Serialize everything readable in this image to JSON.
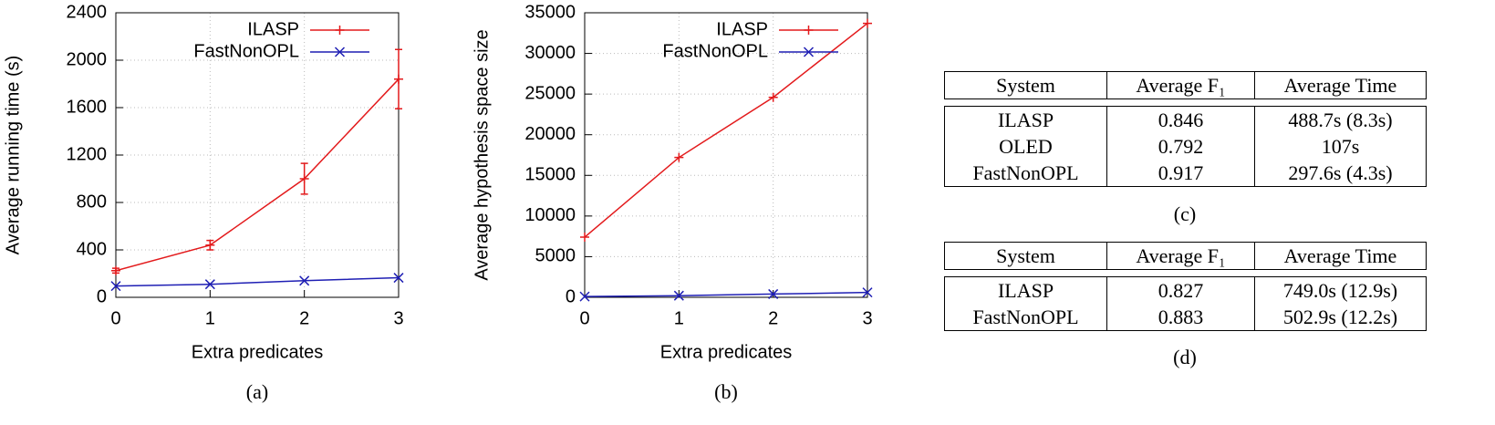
{
  "chart_data": [
    {
      "type": "line",
      "caption": "(a)",
      "x_label": "Extra predicates",
      "y_label": "Average running time (s)",
      "x": [
        0,
        1,
        2,
        3
      ],
      "xlim": [
        0,
        3
      ],
      "xticks": [
        0,
        1,
        2,
        3
      ],
      "ylim": [
        0,
        2400
      ],
      "yticks": [
        0,
        400,
        800,
        1200,
        1600,
        2000,
        2400
      ],
      "grid": true,
      "legend": "upper right",
      "series": [
        {
          "name": "ILASP",
          "color": "#e31a1c",
          "marker": "plus",
          "values": [
            225,
            440,
            1000,
            1840
          ],
          "errors": [
            20,
            40,
            130,
            250
          ]
        },
        {
          "name": "FastNonOPL",
          "color": "#1f1fb4",
          "marker": "cross",
          "values": [
            95,
            110,
            140,
            165
          ]
        }
      ]
    },
    {
      "type": "line",
      "caption": "(b)",
      "x_label": "Extra predicates",
      "y_label": "Average hypothesis space size",
      "x": [
        0,
        1,
        2,
        3
      ],
      "xlim": [
        0,
        3
      ],
      "xticks": [
        0,
        1,
        2,
        3
      ],
      "ylim": [
        0,
        35000
      ],
      "yticks": [
        0,
        5000,
        10000,
        15000,
        20000,
        25000,
        30000,
        35000
      ],
      "grid": true,
      "legend": "upper right",
      "series": [
        {
          "name": "ILASP",
          "color": "#e31a1c",
          "marker": "plus",
          "values": [
            7400,
            17200,
            24600,
            33700
          ]
        },
        {
          "name": "FastNonOPL",
          "color": "#1f1fb4",
          "marker": "cross",
          "values": [
            100,
            200,
            400,
            600
          ]
        }
      ]
    }
  ],
  "tables": [
    {
      "caption": "(c)",
      "columns": [
        "System",
        "Average F₁",
        "Average Time"
      ],
      "rows": [
        [
          "ILASP",
          0.846,
          "488.7s (8.3s)"
        ],
        [
          "OLED",
          0.792,
          "107s"
        ],
        [
          "FastNonOPL",
          0.917,
          "297.6s (4.3s)"
        ]
      ]
    },
    {
      "caption": "(d)",
      "columns": [
        "System",
        "Average F₁",
        "Average Time"
      ],
      "rows": [
        [
          "ILASP",
          0.827,
          "749.0s (12.9s)"
        ],
        [
          "FastNonOPL",
          0.883,
          "502.9s (12.2s)"
        ]
      ]
    }
  ]
}
